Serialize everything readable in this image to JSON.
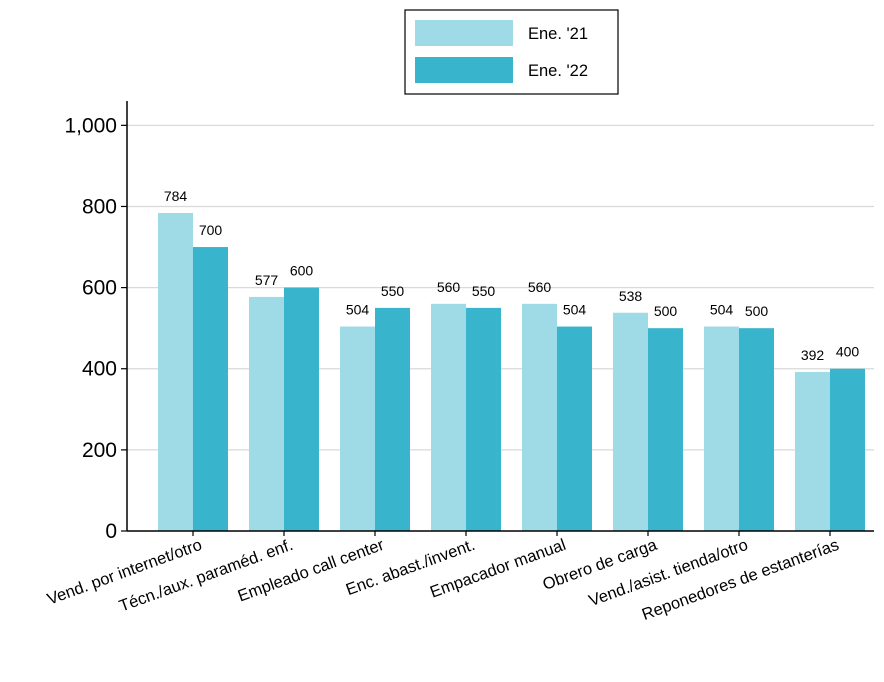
{
  "chart_data": {
    "type": "bar",
    "categories": [
      "Vend. por internet/otro",
      "Técn./aux. paraméd. enf.",
      "Empleado call center",
      "Enc. abast./invent.",
      "Empacador manual",
      "Obrero de carga",
      "Vend./asist. tienda/otro",
      "Reponedores de estanterías"
    ],
    "series": [
      {
        "name": "Ene. '21",
        "color": "#9edbe6",
        "values": [
          784,
          577,
          504,
          560,
          560,
          538,
          504,
          392
        ]
      },
      {
        "name": "Ene. '22",
        "color": "#38b5cc",
        "values": [
          700,
          600,
          550,
          550,
          504,
          500,
          500,
          400
        ]
      }
    ],
    "data_labels": [
      [
        "784",
        "577",
        "504",
        "560",
        "560",
        "538",
        "504",
        "392"
      ],
      [
        "700",
        "600",
        "550",
        "550",
        "504",
        "500",
        "500",
        "400"
      ]
    ],
    "yticks": [
      0,
      200,
      400,
      600,
      800,
      1000
    ],
    "ytick_labels": [
      "0",
      "200",
      "400",
      "600",
      "800",
      "1,000"
    ],
    "ylim": [
      0,
      1060
    ],
    "grid": true,
    "legend_position": "top-center",
    "title": "",
    "xlabel": "",
    "ylabel": ""
  }
}
